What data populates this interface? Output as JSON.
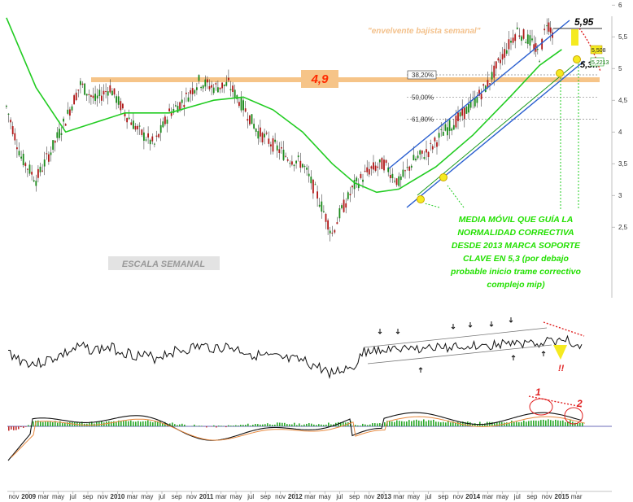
{
  "chart_data": [
    {
      "type": "candlestick",
      "panel": "price",
      "y_ticks": [
        2.5,
        3,
        3.5,
        4,
        4.5,
        5,
        5.5,
        6
      ],
      "y_tick_labels": [
        "2,5",
        "3",
        "3,5",
        "4",
        "4,5",
        "5",
        "5,5",
        "6"
      ],
      "ylim": [
        2.2,
        6.1
      ],
      "price_series": [
        {
          "date": "2008-10",
          "close": 4.4
        },
        {
          "date": "2008-12",
          "close": 3.6
        },
        {
          "date": "2009-02",
          "close": 3.25
        },
        {
          "date": "2009-04",
          "close": 3.7
        },
        {
          "date": "2009-06",
          "close": 4.2
        },
        {
          "date": "2009-08",
          "close": 4.75
        },
        {
          "date": "2009-10",
          "close": 4.5
        },
        {
          "date": "2009-12",
          "close": 4.7
        },
        {
          "date": "2010-02",
          "close": 4.3
        },
        {
          "date": "2010-04",
          "close": 4.0
        },
        {
          "date": "2010-06",
          "close": 3.8
        },
        {
          "date": "2010-08",
          "close": 4.3
        },
        {
          "date": "2010-10",
          "close": 4.5
        },
        {
          "date": "2010-12",
          "close": 4.8
        },
        {
          "date": "2011-02",
          "close": 4.7
        },
        {
          "date": "2011-04",
          "close": 4.75
        },
        {
          "date": "2011-06",
          "close": 4.4
        },
        {
          "date": "2011-08",
          "close": 4.0
        },
        {
          "date": "2011-10",
          "close": 3.8
        },
        {
          "date": "2011-12",
          "close": 3.6
        },
        {
          "date": "2012-02",
          "close": 3.5
        },
        {
          "date": "2012-04",
          "close": 3.0
        },
        {
          "date": "2012-06",
          "close": 2.4
        },
        {
          "date": "2012-07",
          "close": 2.7
        },
        {
          "date": "2012-09",
          "close": 3.15
        },
        {
          "date": "2012-11",
          "close": 3.4
        },
        {
          "date": "2013-01",
          "close": 3.5
        },
        {
          "date": "2013-03",
          "close": 3.2
        },
        {
          "date": "2013-05",
          "close": 3.55
        },
        {
          "date": "2013-07",
          "close": 3.7
        },
        {
          "date": "2013-09",
          "close": 4.0
        },
        {
          "date": "2013-11",
          "close": 4.2
        },
        {
          "date": "2014-01",
          "close": 4.45
        },
        {
          "date": "2014-03",
          "close": 4.75
        },
        {
          "date": "2014-05",
          "close": 5.2
        },
        {
          "date": "2014-07",
          "close": 5.6
        },
        {
          "date": "2014-09",
          "close": 5.4
        },
        {
          "date": "2014-10",
          "close": 5.2
        },
        {
          "date": "2014-11",
          "close": 5.75
        },
        {
          "date": "2014-12",
          "close": 5.51
        }
      ],
      "moving_average": [
        {
          "date": "2008-10",
          "value": 5.8
        },
        {
          "date": "2009-02",
          "value": 4.7
        },
        {
          "date": "2009-06",
          "value": 4.0
        },
        {
          "date": "2009-10",
          "value": 4.15
        },
        {
          "date": "2010-02",
          "value": 4.3
        },
        {
          "date": "2010-08",
          "value": 4.3
        },
        {
          "date": "2011-02",
          "value": 4.5
        },
        {
          "date": "2011-06",
          "value": 4.55
        },
        {
          "date": "2011-10",
          "value": 4.35
        },
        {
          "date": "2012-02",
          "value": 4.0
        },
        {
          "date": "2012-06",
          "value": 3.5
        },
        {
          "date": "2012-09",
          "value": 3.2
        },
        {
          "date": "2012-12",
          "value": 3.05
        },
        {
          "date": "2013-03",
          "value": 3.1
        },
        {
          "date": "2013-08",
          "value": 3.45
        },
        {
          "date": "2014-01",
          "value": 3.95
        },
        {
          "date": "2014-06",
          "value": 4.55
        },
        {
          "date": "2014-10",
          "value": 5.05
        },
        {
          "date": "2015-01",
          "value": 5.3
        }
      ],
      "horizontal_resistance": 4.9,
      "fib_levels": [
        {
          "label": "38,20%",
          "value": 4.9
        },
        {
          "label": "50,00%",
          "value": 4.55
        },
        {
          "label": "61,80%",
          "value": 4.2
        }
      ],
      "last_price_labels": [
        "5,508",
        "5,2213"
      ],
      "annotations": {
        "resistance_label": "4,9",
        "peak_label": "5,95",
        "support_label": "5,3!!",
        "envelope_label": "\"envelvente bajista semanal\"",
        "scale_label": "ESCALA SEMANAL",
        "comment_lines": [
          "MEDIA MÓVIL QUE GUÍA LA",
          "NORMALIDAD CORRECTIVA",
          "DESDE 2013 MARCA SOPORTE",
          "CLAVE EN 5,3 (por debajo",
          "probable inicio trame correctivo",
          "complejo mip)"
        ]
      }
    },
    {
      "type": "line",
      "panel": "oscillator",
      "annotations": {
        "warning": "!!"
      }
    },
    {
      "type": "bar",
      "panel": "macd",
      "annotations": {
        "marker_1": "1",
        "marker_2": "2"
      }
    }
  ],
  "x_axis": {
    "labels": [
      {
        "text": "nov",
        "date": "2008-11",
        "bold": false
      },
      {
        "text": "2009",
        "date": "2009-01",
        "bold": true
      },
      {
        "text": "mar",
        "date": "2009-03",
        "bold": false
      },
      {
        "text": "may",
        "date": "2009-05",
        "bold": false
      },
      {
        "text": "jul",
        "date": "2009-07",
        "bold": false
      },
      {
        "text": "sep",
        "date": "2009-09",
        "bold": false
      },
      {
        "text": "nov",
        "date": "2009-11",
        "bold": false
      },
      {
        "text": "2010",
        "date": "2010-01",
        "bold": true
      },
      {
        "text": "mar",
        "date": "2010-03",
        "bold": false
      },
      {
        "text": "may",
        "date": "2010-05",
        "bold": false
      },
      {
        "text": "jul",
        "date": "2010-07",
        "bold": false
      },
      {
        "text": "sep",
        "date": "2010-09",
        "bold": false
      },
      {
        "text": "nov",
        "date": "2010-11",
        "bold": false
      },
      {
        "text": "2011",
        "date": "2011-01",
        "bold": true
      },
      {
        "text": "mar",
        "date": "2011-03",
        "bold": false
      },
      {
        "text": "may",
        "date": "2011-05",
        "bold": false
      },
      {
        "text": "jul",
        "date": "2011-07",
        "bold": false
      },
      {
        "text": "sep",
        "date": "2011-09",
        "bold": false
      },
      {
        "text": "nov",
        "date": "2011-11",
        "bold": false
      },
      {
        "text": "2012",
        "date": "2012-01",
        "bold": true
      },
      {
        "text": "mar",
        "date": "2012-03",
        "bold": false
      },
      {
        "text": "may",
        "date": "2012-05",
        "bold": false
      },
      {
        "text": "jul",
        "date": "2012-07",
        "bold": false
      },
      {
        "text": "sep",
        "date": "2012-09",
        "bold": false
      },
      {
        "text": "nov",
        "date": "2012-11",
        "bold": false
      },
      {
        "text": "2013",
        "date": "2013-01",
        "bold": true
      },
      {
        "text": "mar",
        "date": "2013-03",
        "bold": false
      },
      {
        "text": "may",
        "date": "2013-05",
        "bold": false
      },
      {
        "text": "jul",
        "date": "2013-07",
        "bold": false
      },
      {
        "text": "sep",
        "date": "2013-09",
        "bold": false
      },
      {
        "text": "nov",
        "date": "2013-11",
        "bold": false
      },
      {
        "text": "2014",
        "date": "2014-01",
        "bold": true
      },
      {
        "text": "mar",
        "date": "2014-03",
        "bold": false
      },
      {
        "text": "may",
        "date": "2014-05",
        "bold": false
      },
      {
        "text": "jul",
        "date": "2014-07",
        "bold": false
      },
      {
        "text": "sep",
        "date": "2014-09",
        "bold": false
      },
      {
        "text": "nov",
        "date": "2014-11",
        "bold": false
      },
      {
        "text": "2015",
        "date": "2015-01",
        "bold": true
      },
      {
        "text": "mar",
        "date": "2015-03",
        "bold": false
      }
    ]
  },
  "colors": {
    "candle_up": "#1a8a1a",
    "candle_down": "#b01818",
    "moving_average": "#22cc22",
    "channel": "#2a5fd0",
    "resistance": "#f6c488",
    "envelope": "#e02020",
    "comment": "#22e000",
    "support_marker": "#f5ea20"
  }
}
